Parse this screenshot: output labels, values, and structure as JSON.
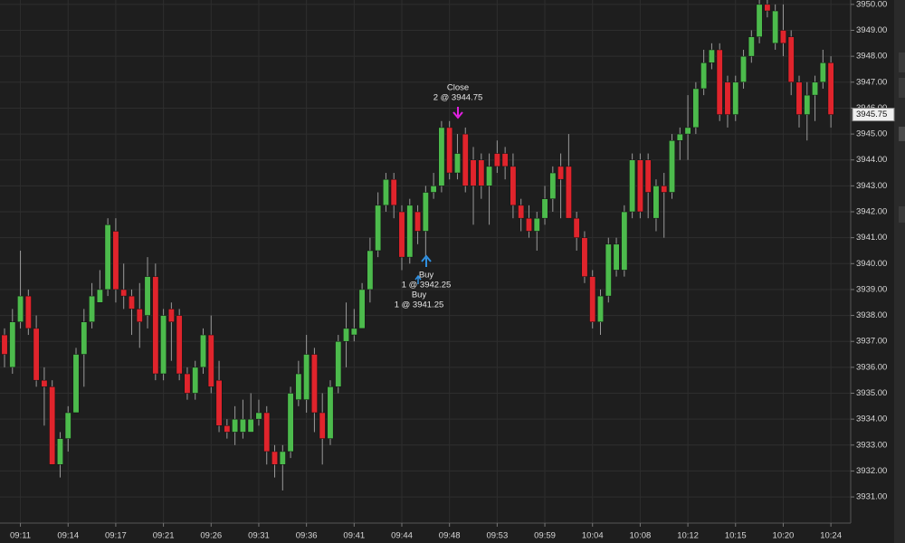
{
  "chart_data": {
    "type": "candlestick",
    "categories": [
      null,
      null,
      "09:11",
      null,
      null,
      null,
      null,
      null,
      "09:14",
      null,
      null,
      null,
      null,
      null,
      "09:17",
      null,
      null,
      null,
      null,
      null,
      "09:21",
      null,
      null,
      null,
      null,
      null,
      "09:26",
      null,
      null,
      null,
      null,
      null,
      "09:31",
      null,
      null,
      null,
      null,
      null,
      "09:36",
      null,
      null,
      null,
      null,
      null,
      "09:41",
      null,
      null,
      null,
      null,
      null,
      "09:44",
      null,
      null,
      null,
      null,
      null,
      "09:48",
      null,
      null,
      null,
      null,
      null,
      "09:53",
      null,
      null,
      null,
      null,
      null,
      "09:59",
      null,
      null,
      null,
      null,
      null,
      "10:04",
      null,
      null,
      null,
      null,
      null,
      "10:08",
      null,
      null,
      null,
      null,
      null,
      "10:12",
      null,
      null,
      null,
      null,
      null,
      "10:15",
      null,
      null,
      null,
      null,
      null,
      "10:20",
      null,
      null,
      null,
      null,
      null,
      "10:24"
    ],
    "open": [
      3937.25,
      3936,
      3937.75,
      3938.75,
      3937.5,
      3935.5,
      3935.25,
      3932.25,
      3933.25,
      3934.25,
      3936.5,
      3937.75,
      3938.5,
      3939,
      3941.25,
      3939,
      3938.75,
      3938.25,
      3938,
      3939.5,
      3935.75,
      3938.25,
      3938,
      3935.75,
      3935,
      3936,
      3937.25,
      3935.5,
      3933.75,
      3933.5,
      3933.5,
      3933.5,
      3934,
      3934.25,
      3932.75,
      3932.25,
      3932.75,
      3934.75,
      3934.75,
      3936.5,
      3934.25,
      3933.25,
      3935.25,
      3937,
      3937.25,
      3937.5,
      3939,
      3940.5,
      3942.25,
      3943.25,
      3942,
      3940.25,
      3942,
      3941.25,
      3942.75,
      3943,
      3945.25,
      3943.5,
      3945,
      3944,
      3944,
      3943,
      3944.25,
      3944.25,
      3943.75,
      3942.25,
      3941.75,
      3941.25,
      3941.75,
      3942.5,
      3943.75,
      3943.75,
      3941.75,
      3941,
      3939.5,
      3937.75,
      3938.75,
      3939.75,
      3939.75,
      3942,
      3944,
      3944,
      3941.75,
      3943,
      3942.75,
      3944.75,
      3945,
      3945.25,
      3946.75,
      3947.75,
      3948.25,
      3947,
      3945.75,
      3947,
      3948,
      3948.75,
      3950,
      3948.5,
      3949,
      3948.75,
      3947,
      3945.75,
      3946.5,
      3947,
      3947.75
    ],
    "high": [
      3937.5,
      3938.25,
      3940.5,
      3939,
      3938,
      3936,
      3935.5,
      3933.5,
      3934.5,
      3936.75,
      3938.25,
      3939.25,
      3939.75,
      3941.75,
      3941.75,
      3940,
      3939,
      3939.25,
      3940.25,
      3940,
      3938.25,
      3938.5,
      3938.25,
      3936,
      3936.25,
      3937.5,
      3938,
      3936.25,
      3934,
      3934.5,
      3934.75,
      3935,
      3934.75,
      3934.5,
      3933,
      3933,
      3935.25,
      3936.25,
      3937.25,
      3936.75,
      3935,
      3935.5,
      3937.25,
      3938.5,
      3938.25,
      3939.25,
      3941,
      3942.75,
      3943.5,
      3943.5,
      3942.25,
      3942.5,
      3942.25,
      3943,
      3943.5,
      3945.5,
      3945.5,
      3945,
      3945.25,
      3944.5,
      3944.25,
      3944.25,
      3944.75,
      3944.5,
      3944.25,
      3942.5,
      3942.25,
      3942,
      3943,
      3943.75,
      3944.25,
      3945,
      3942,
      3941.25,
      3939.75,
      3939,
      3941,
      3941,
      3942.25,
      3944.25,
      3944.25,
      3944.25,
      3943.25,
      3943.5,
      3945,
      3945.25,
      3946.5,
      3947,
      3948.25,
      3948.5,
      3948.5,
      3947.25,
      3947.25,
      3948.25,
      3949,
      3950.25,
      3950.25,
      3950,
      3950,
      3949,
      3947.25,
      3947,
      3947.25,
      3948.25,
      3948
    ],
    "low": [
      3936,
      3935.75,
      3937.5,
      3937.25,
      3935.25,
      3933.75,
      3932.25,
      3931.75,
      3932.75,
      3934.25,
      3935.25,
      3937.5,
      3938.5,
      3938.75,
      3938.5,
      3938.25,
      3937.25,
      3936.75,
      3937.5,
      3935.5,
      3935.5,
      3936.25,
      3935.5,
      3934.75,
      3934.75,
      3935.75,
      3935,
      3933.5,
      3933.25,
      3933,
      3933.25,
      3933.5,
      3933.75,
      3932.25,
      3931.75,
      3931.25,
      3932.5,
      3934.5,
      3934.25,
      3933.5,
      3932.25,
      3933,
      3935,
      3936,
      3937,
      3937.5,
      3938.5,
      3940.25,
      3942,
      3941.75,
      3939.75,
      3940,
      3940.75,
      3940.25,
      3942.5,
      3942.75,
      3943.25,
      3943.25,
      3942.75,
      3941.5,
      3942.5,
      3941.5,
      3943.5,
      3943.25,
      3941.75,
      3941.25,
      3941,
      3940.5,
      3941.5,
      3942,
      3941.75,
      3941.75,
      3940.5,
      3939.25,
      3937.5,
      3937.25,
      3938.5,
      3939.5,
      3939.5,
      3941.75,
      3941.75,
      3941.75,
      3941.25,
      3941,
      3942.5,
      3944,
      3944,
      3945,
      3946.5,
      3947.5,
      3945.5,
      3945.25,
      3945.5,
      3946.75,
      3947.75,
      3948.5,
      3949.5,
      3948.25,
      3948,
      3946.5,
      3945.25,
      3944.75,
      3945.5,
      3946.75,
      3945.25
    ],
    "close": [
      3936.5,
      3937.75,
      3938.75,
      3937.5,
      3935.5,
      3935.25,
      3932.25,
      3933.25,
      3934.25,
      3936.5,
      3937.75,
      3938.75,
      3939,
      3941.5,
      3939,
      3938.75,
      3938.25,
      3937.75,
      3939.5,
      3935.75,
      3938,
      3937.75,
      3935.75,
      3935,
      3936,
      3937.25,
      3935.25,
      3933.75,
      3933.5,
      3934,
      3934,
      3934,
      3934.25,
      3932.75,
      3932.25,
      3932.75,
      3935,
      3935.75,
      3936.5,
      3934.25,
      3933.25,
      3935.25,
      3937,
      3937.5,
      3937.5,
      3939,
      3940.5,
      3942.25,
      3943.25,
      3942.25,
      3940.25,
      3942.25,
      3941.25,
      3942.75,
      3943,
      3945.25,
      3943.5,
      3944.25,
      3943,
      3943,
      3943,
      3943.75,
      3943.75,
      3943.75,
      3942.25,
      3941.75,
      3941.25,
      3941.75,
      3942.5,
      3943.5,
      3943.25,
      3941.75,
      3941,
      3939.5,
      3937.75,
      3938.75,
      3940.75,
      3940.75,
      3942,
      3944,
      3942,
      3942.75,
      3943,
      3942.75,
      3944.75,
      3945,
      3945.25,
      3946.75,
      3947.75,
      3948.25,
      3945.75,
      3945.75,
      3947,
      3948,
      3948.75,
      3950,
      3949.75,
      3949.75,
      3948.5,
      3947,
      3945.75,
      3946.5,
      3947,
      3947.75,
      3945.75
    ],
    "up_color": "#4cbb4c",
    "down_color": "#e0242c",
    "ylim": [
      3929.99,
      3950.17
    ],
    "yticks": [
      {
        "value": 3931,
        "label": "3931.00"
      },
      {
        "value": 3932,
        "label": "3932.00"
      },
      {
        "value": 3933,
        "label": "3933.00"
      },
      {
        "value": 3934,
        "label": "3934.00"
      },
      {
        "value": 3935,
        "label": "3935.00"
      },
      {
        "value": 3936,
        "label": "3936.00"
      },
      {
        "value": 3937,
        "label": "3937.00"
      },
      {
        "value": 3938,
        "label": "3938.00"
      },
      {
        "value": 3939,
        "label": "3939.00"
      },
      {
        "value": 3940,
        "label": "3940.00"
      },
      {
        "value": 3941,
        "label": "3941.00"
      },
      {
        "value": 3942,
        "label": "3942.00"
      },
      {
        "value": 3943,
        "label": "3943.00"
      },
      {
        "value": 3944,
        "label": "3944.00"
      },
      {
        "value": 3945,
        "label": "3945.00"
      },
      {
        "value": 3946,
        "label": "3946.00"
      },
      {
        "value": 3947,
        "label": "3947.00"
      },
      {
        "value": 3948,
        "label": "3948.00"
      },
      {
        "value": 3949,
        "label": "3949.00"
      },
      {
        "value": 3950,
        "label": "3950.00"
      }
    ],
    "grid": true,
    "last_price": 3945.75,
    "annotations": [
      {
        "title": "Close",
        "detail": "2 @ 3944.75"
      },
      {
        "title": "Buy",
        "detail": "1 @ 3942.25"
      },
      {
        "title": "Buy",
        "detail": "1 @ 3941.25"
      }
    ]
  }
}
